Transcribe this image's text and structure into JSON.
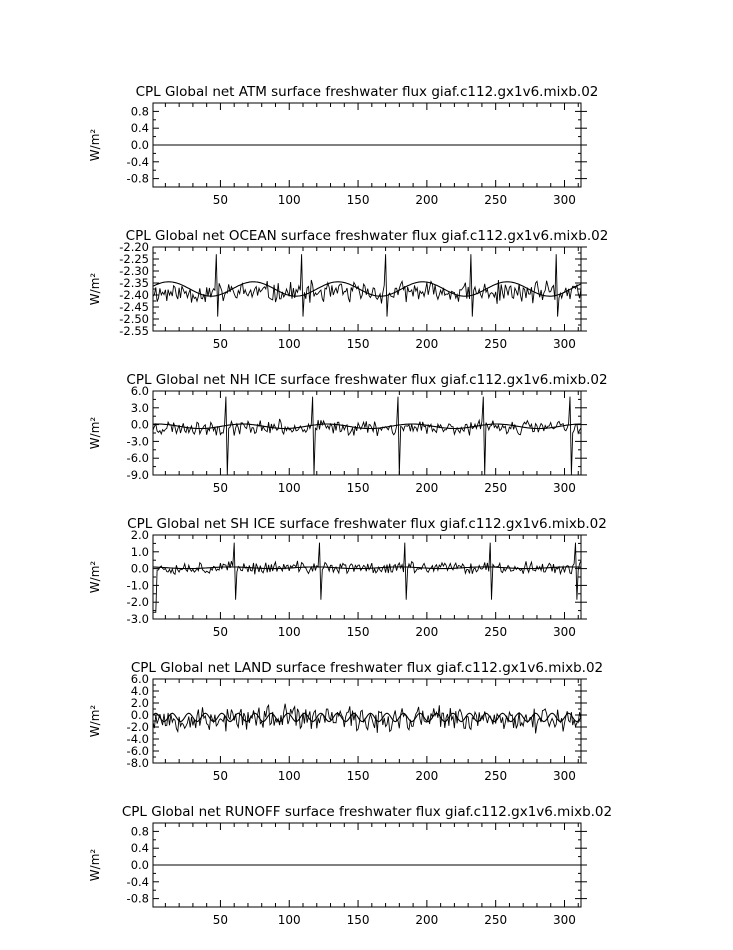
{
  "page": {
    "background": "#ffffff",
    "line_color": "#000000"
  },
  "chart_data": [
    {
      "type": "line",
      "title": "CPL Global net ATM surface freshwater flux giaf.c112.gx1v6.mixb.02",
      "ylabel": "W/m²",
      "xlim": [
        1,
        312
      ],
      "ylim": [
        -1.0,
        1.0
      ],
      "yticks": [
        0.8,
        0.4,
        0.0,
        -0.4,
        -0.8
      ],
      "yticklabels": [
        "0.8",
        "0.4",
        "0.0",
        "-0.4",
        "-0.8"
      ],
      "xticks": [
        50,
        100,
        150,
        200,
        250,
        300
      ],
      "xticklabels": [
        "50",
        "100",
        "150",
        "200",
        "250",
        "300"
      ],
      "series": [
        {
          "kind": "constant",
          "value": 0.0
        }
      ]
    },
    {
      "type": "line",
      "title": "CPL Global net OCEAN surface freshwater flux giaf.c112.gx1v6.mixb.02",
      "ylabel": "W/m²",
      "xlim": [
        1,
        312
      ],
      "ylim": [
        -2.55,
        -2.2
      ],
      "yticks": [
        -2.2,
        -2.25,
        -2.3,
        -2.35,
        -2.4,
        -2.45,
        -2.5,
        -2.55
      ],
      "yticklabels": [
        "-2.20",
        "-2.25",
        "-2.30",
        "-2.35",
        "-2.40",
        "-2.45",
        "-2.50",
        "-2.55"
      ],
      "xticks": [
        50,
        100,
        150,
        200,
        250,
        300
      ],
      "xticklabels": [
        "50",
        "100",
        "150",
        "200",
        "250",
        "300"
      ],
      "series": [
        {
          "kind": "noisy",
          "mean": -2.39,
          "spread": 0.055,
          "spikes": [
            47,
            109,
            170,
            232,
            294
          ],
          "spike_amp": 0.16,
          "dip_amp": -0.1,
          "seed": 11
        },
        {
          "kind": "smooth",
          "mean": -2.375,
          "amp": 0.03,
          "period": 61.5,
          "phase": 0.3
        }
      ]
    },
    {
      "type": "line",
      "title": "CPL Global net NH ICE surface freshwater flux giaf.c112.gx1v6.mixb.02",
      "ylabel": "W/m²",
      "xlim": [
        1,
        312
      ],
      "ylim": [
        -9.0,
        6.0
      ],
      "yticks": [
        6.0,
        3.0,
        0.0,
        -3.0,
        -6.0,
        -9.0
      ],
      "yticklabels": [
        "6.0",
        "3.0",
        "0.0",
        "-3.0",
        "-6.0",
        "-9.0"
      ],
      "xticks": [
        50,
        100,
        150,
        200,
        250,
        300
      ],
      "xticklabels": [
        "50",
        "100",
        "150",
        "200",
        "250",
        "300"
      ],
      "series": [
        {
          "kind": "noisy",
          "mean": -0.5,
          "spread": 1.6,
          "spikes": [
            54,
            117,
            179,
            241,
            304
          ],
          "spike_amp": 5.5,
          "dip_amp": -8.5,
          "seed": 23
        },
        {
          "kind": "smooth",
          "mean": -0.3,
          "amp": 0.4,
          "period": 61.5,
          "phase": 1.1
        }
      ]
    },
    {
      "type": "line",
      "title": "CPL Global net SH ICE surface freshwater flux giaf.c112.gx1v6.mixb.02",
      "ylabel": "W/m²",
      "xlim": [
        1,
        312
      ],
      "ylim": [
        -3.0,
        2.0
      ],
      "yticks": [
        2.0,
        1.0,
        0.0,
        -1.0,
        -2.0,
        -3.0
      ],
      "yticklabels": [
        "2.0",
        "1.0",
        "0.0",
        "-1.0",
        "-2.0",
        "-3.0"
      ],
      "xticks": [
        50,
        100,
        150,
        200,
        250,
        300
      ],
      "xticklabels": [
        "50",
        "100",
        "150",
        "200",
        "250",
        "300"
      ],
      "series": [
        {
          "kind": "noisy",
          "mean": 0.05,
          "spread": 0.45,
          "spikes": [
            60,
            122,
            184,
            246,
            308
          ],
          "spike_amp": 1.5,
          "dip_amp": -1.9,
          "seed": 37,
          "start_dip": -2.6
        },
        {
          "kind": "smooth",
          "mean": 0.05,
          "amp": 0.05,
          "period": 61.5,
          "phase": 2.0
        }
      ]
    },
    {
      "type": "line",
      "title": "CPL Global net LAND surface freshwater flux giaf.c112.gx1v6.mixb.02",
      "ylabel": "W/m²",
      "xlim": [
        1,
        312
      ],
      "ylim": [
        -8.0,
        6.0
      ],
      "yticks": [
        6.0,
        4.0,
        2.0,
        0.0,
        -2.0,
        -4.0,
        -6.0,
        -8.0
      ],
      "yticklabels": [
        "6.0",
        "4.0",
        "2.0",
        "0.0",
        "-2.0",
        "-4.0",
        "-6.0",
        "-8.0"
      ],
      "xticks": [
        50,
        100,
        150,
        200,
        250,
        300
      ],
      "xticklabels": [
        "50",
        "100",
        "150",
        "200",
        "250",
        "300"
      ],
      "series": [
        {
          "kind": "noisy",
          "mean": -0.6,
          "spread": 2.6,
          "spikes": [],
          "spike_amp": 0,
          "dip_amp": 0,
          "seed": 53
        },
        {
          "kind": "smooth",
          "mean": -0.4,
          "amp": 0.7,
          "period": 12,
          "phase": 0.0
        }
      ]
    },
    {
      "type": "line",
      "title": "CPL Global net RUNOFF surface freshwater flux giaf.c112.gx1v6.mixb.02",
      "ylabel": "W/m²",
      "xlim": [
        1,
        312
      ],
      "ylim": [
        -1.0,
        1.0
      ],
      "yticks": [
        0.8,
        0.4,
        0.0,
        -0.4,
        -0.8
      ],
      "yticklabels": [
        "0.8",
        "0.4",
        "0.0",
        "-0.4",
        "-0.8"
      ],
      "xticks": [
        50,
        100,
        150,
        200,
        250,
        300
      ],
      "xticklabels": [
        "50",
        "100",
        "150",
        "200",
        "250",
        "300"
      ],
      "series": [
        {
          "kind": "constant",
          "value": 0.0
        }
      ]
    }
  ]
}
